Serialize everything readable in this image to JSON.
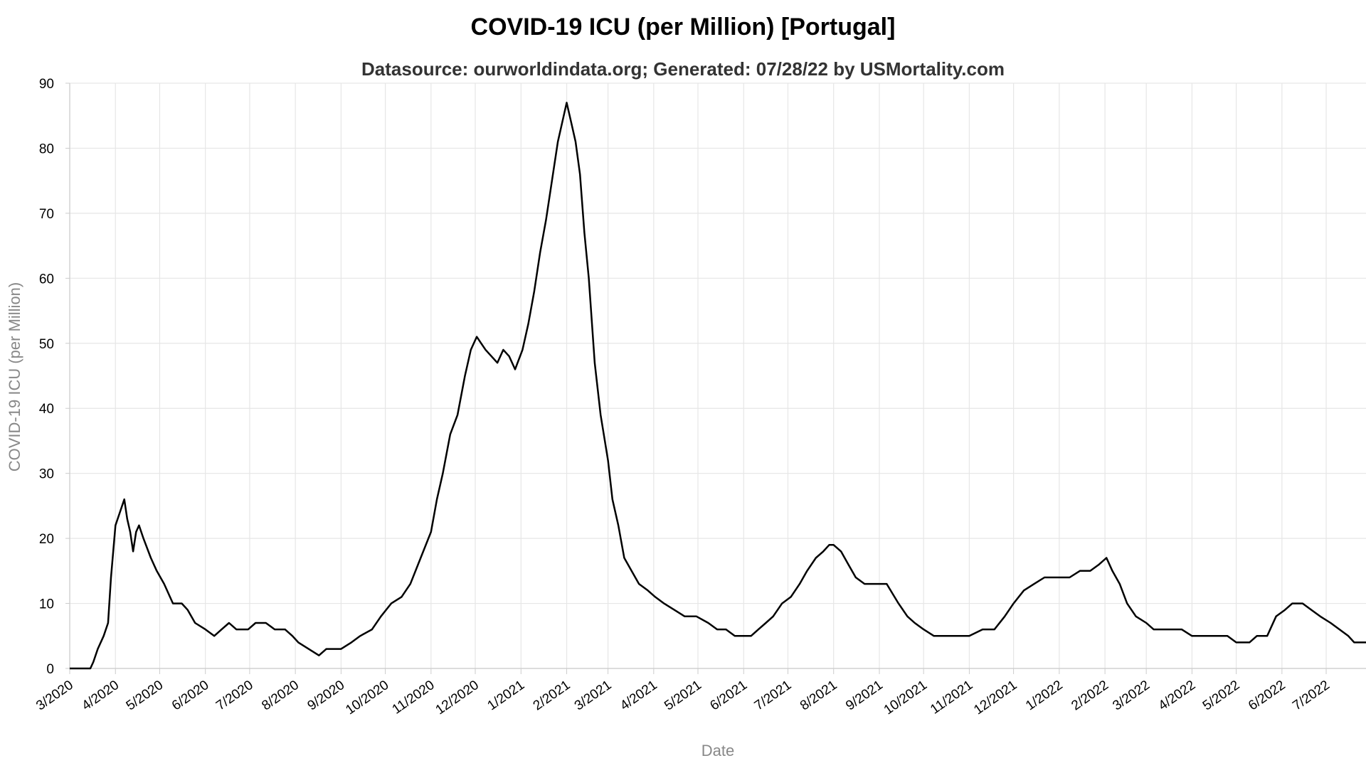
{
  "chart_data": {
    "type": "line",
    "title": "COVID-19 ICU (per Million) [Portugal]",
    "subtitle": "Datasource: ourworldindata.org; Generated: 07/28/22 by USMortality.com",
    "xlabel": "Date",
    "ylabel": "COVID-19 ICU (per Million)",
    "ylim": [
      0,
      90
    ],
    "y_ticks": [
      "0",
      "10",
      "20",
      "30",
      "40",
      "50",
      "60",
      "70",
      "80",
      "90"
    ],
    "x_range": [
      "2020-03-01",
      "2022-07-28"
    ],
    "x_ticks": [
      "3/2020",
      "4/2020",
      "5/2020",
      "6/2020",
      "7/2020",
      "8/2020",
      "9/2020",
      "10/2020",
      "11/2020",
      "12/2020",
      "1/2021",
      "2/2021",
      "3/2021",
      "4/2021",
      "5/2021",
      "6/2021",
      "7/2021",
      "8/2021",
      "9/2021",
      "10/2021",
      "11/2021",
      "12/2021",
      "1/2022",
      "2/2022",
      "3/2022",
      "4/2022",
      "5/2022",
      "6/2022",
      "7/2022"
    ],
    "grid": true,
    "line_color": "#000000",
    "series": [
      {
        "points": [
          [
            "2020-03-01",
            0
          ],
          [
            "2020-03-15",
            0
          ],
          [
            "2020-03-17",
            1
          ],
          [
            "2020-03-20",
            3
          ],
          [
            "2020-03-24",
            5
          ],
          [
            "2020-03-27",
            7
          ],
          [
            "2020-03-29",
            14
          ],
          [
            "2020-04-01",
            22
          ],
          [
            "2020-04-04",
            24
          ],
          [
            "2020-04-07",
            26
          ],
          [
            "2020-04-09",
            23
          ],
          [
            "2020-04-11",
            21
          ],
          [
            "2020-04-13",
            18
          ],
          [
            "2020-04-15",
            21
          ],
          [
            "2020-04-17",
            22
          ],
          [
            "2020-04-20",
            20
          ],
          [
            "2020-04-25",
            17
          ],
          [
            "2020-04-29",
            15
          ],
          [
            "2020-05-04",
            13
          ],
          [
            "2020-05-10",
            10
          ],
          [
            "2020-05-16",
            10
          ],
          [
            "2020-05-20",
            9
          ],
          [
            "2020-05-25",
            7
          ],
          [
            "2020-06-01",
            6
          ],
          [
            "2020-06-07",
            5
          ],
          [
            "2020-06-12",
            6
          ],
          [
            "2020-06-17",
            7
          ],
          [
            "2020-06-22",
            6
          ],
          [
            "2020-06-30",
            6
          ],
          [
            "2020-07-05",
            7
          ],
          [
            "2020-07-12",
            7
          ],
          [
            "2020-07-18",
            6
          ],
          [
            "2020-07-25",
            6
          ],
          [
            "2020-07-30",
            5
          ],
          [
            "2020-08-03",
            4
          ],
          [
            "2020-08-10",
            3
          ],
          [
            "2020-08-17",
            2
          ],
          [
            "2020-08-22",
            3
          ],
          [
            "2020-09-01",
            3
          ],
          [
            "2020-09-08",
            4
          ],
          [
            "2020-09-14",
            5
          ],
          [
            "2020-09-22",
            6
          ],
          [
            "2020-09-28",
            8
          ],
          [
            "2020-10-05",
            10
          ],
          [
            "2020-10-12",
            11
          ],
          [
            "2020-10-18",
            13
          ],
          [
            "2020-10-25",
            17
          ],
          [
            "2020-11-01",
            21
          ],
          [
            "2020-11-05",
            26
          ],
          [
            "2020-11-09",
            30
          ],
          [
            "2020-11-14",
            36
          ],
          [
            "2020-11-19",
            39
          ],
          [
            "2020-11-24",
            45
          ],
          [
            "2020-11-28",
            49
          ],
          [
            "2020-12-02",
            51
          ],
          [
            "2020-12-05",
            50
          ],
          [
            "2020-12-08",
            49
          ],
          [
            "2020-12-12",
            48
          ],
          [
            "2020-12-16",
            47
          ],
          [
            "2020-12-20",
            49
          ],
          [
            "2020-12-24",
            48
          ],
          [
            "2020-12-28",
            46
          ],
          [
            "2021-01-02",
            49
          ],
          [
            "2021-01-06",
            53
          ],
          [
            "2021-01-10",
            58
          ],
          [
            "2021-01-14",
            64
          ],
          [
            "2021-01-18",
            69
          ],
          [
            "2021-01-22",
            75
          ],
          [
            "2021-01-26",
            81
          ],
          [
            "2021-01-29",
            84
          ],
          [
            "2021-02-01",
            87
          ],
          [
            "2021-02-04",
            84
          ],
          [
            "2021-02-07",
            81
          ],
          [
            "2021-02-10",
            76
          ],
          [
            "2021-02-13",
            67
          ],
          [
            "2021-02-16",
            60
          ],
          [
            "2021-02-20",
            47
          ],
          [
            "2021-02-24",
            39
          ],
          [
            "2021-03-01",
            32
          ],
          [
            "2021-03-04",
            26
          ],
          [
            "2021-03-08",
            22
          ],
          [
            "2021-03-12",
            17
          ],
          [
            "2021-03-17",
            15
          ],
          [
            "2021-03-22",
            13
          ],
          [
            "2021-03-28",
            12
          ],
          [
            "2021-04-02",
            11
          ],
          [
            "2021-04-08",
            10
          ],
          [
            "2021-04-15",
            9
          ],
          [
            "2021-04-22",
            8
          ],
          [
            "2021-04-30",
            8
          ],
          [
            "2021-05-08",
            7
          ],
          [
            "2021-05-14",
            6
          ],
          [
            "2021-05-20",
            6
          ],
          [
            "2021-05-26",
            5
          ],
          [
            "2021-06-01",
            5
          ],
          [
            "2021-06-06",
            5
          ],
          [
            "2021-06-11",
            6
          ],
          [
            "2021-06-16",
            7
          ],
          [
            "2021-06-21",
            8
          ],
          [
            "2021-06-27",
            10
          ],
          [
            "2021-07-03",
            11
          ],
          [
            "2021-07-09",
            13
          ],
          [
            "2021-07-14",
            15
          ],
          [
            "2021-07-20",
            17
          ],
          [
            "2021-07-25",
            18
          ],
          [
            "2021-07-29",
            19
          ],
          [
            "2021-08-01",
            19
          ],
          [
            "2021-08-06",
            18
          ],
          [
            "2021-08-11",
            16
          ],
          [
            "2021-08-16",
            14
          ],
          [
            "2021-08-22",
            13
          ],
          [
            "2021-08-30",
            13
          ],
          [
            "2021-09-06",
            13
          ],
          [
            "2021-09-14",
            10
          ],
          [
            "2021-09-20",
            8
          ],
          [
            "2021-09-25",
            7
          ],
          [
            "2021-10-01",
            6
          ],
          [
            "2021-10-08",
            5
          ],
          [
            "2021-10-20",
            5
          ],
          [
            "2021-11-01",
            5
          ],
          [
            "2021-11-10",
            6
          ],
          [
            "2021-11-18",
            6
          ],
          [
            "2021-11-25",
            8
          ],
          [
            "2021-12-01",
            10
          ],
          [
            "2021-12-08",
            12
          ],
          [
            "2021-12-15",
            13
          ],
          [
            "2021-12-22",
            14
          ],
          [
            "2022-01-01",
            14
          ],
          [
            "2022-01-08",
            14
          ],
          [
            "2022-01-15",
            15
          ],
          [
            "2022-01-22",
            15
          ],
          [
            "2022-01-28",
            16
          ],
          [
            "2022-02-02",
            17
          ],
          [
            "2022-02-06",
            15
          ],
          [
            "2022-02-11",
            13
          ],
          [
            "2022-02-16",
            10
          ],
          [
            "2022-02-22",
            8
          ],
          [
            "2022-03-01",
            7
          ],
          [
            "2022-03-06",
            6
          ],
          [
            "2022-03-15",
            6
          ],
          [
            "2022-03-25",
            6
          ],
          [
            "2022-04-01",
            5
          ],
          [
            "2022-04-15",
            5
          ],
          [
            "2022-04-25",
            5
          ],
          [
            "2022-05-01",
            4
          ],
          [
            "2022-05-10",
            4
          ],
          [
            "2022-05-15",
            5
          ],
          [
            "2022-05-22",
            5
          ],
          [
            "2022-05-28",
            8
          ],
          [
            "2022-06-03",
            9
          ],
          [
            "2022-06-08",
            10
          ],
          [
            "2022-06-15",
            10
          ],
          [
            "2022-06-21",
            9
          ],
          [
            "2022-06-27",
            8
          ],
          [
            "2022-07-04",
            7
          ],
          [
            "2022-07-10",
            6
          ],
          [
            "2022-07-16",
            5
          ],
          [
            "2022-07-20",
            4
          ],
          [
            "2022-07-28",
            4
          ]
        ]
      }
    ]
  }
}
